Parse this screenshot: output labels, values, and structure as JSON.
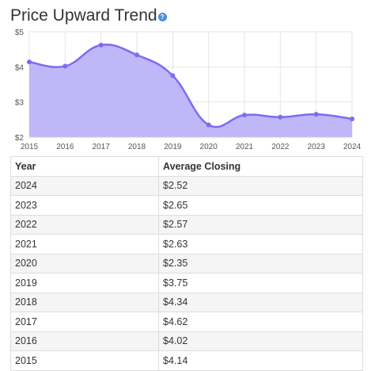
{
  "header": {
    "title": "Price Upward Trend",
    "help_icon": "question-circle-icon",
    "help_glyph": "?"
  },
  "colors": {
    "line": "#7b6cf0",
    "fill": "#bcb3f7",
    "grid": "#e6e6e6",
    "help_icon": "#4a90d9"
  },
  "chart_data": {
    "type": "area",
    "x": [
      2015,
      2016,
      2017,
      2018,
      2019,
      2020,
      2021,
      2022,
      2023,
      2024
    ],
    "tick_labels": [
      "2015",
      "2016",
      "2017",
      "2018",
      "2019",
      "2020",
      "2021",
      "2022",
      "2023",
      "2024"
    ],
    "y_ticks": [
      2,
      3,
      4,
      5
    ],
    "y_tick_labels": [
      "$2",
      "$3",
      "$4",
      "$5"
    ],
    "values": [
      4.14,
      4.02,
      4.62,
      4.34,
      3.75,
      2.35,
      2.63,
      2.57,
      2.65,
      2.52
    ],
    "ylim": [
      2,
      5
    ],
    "xlim": [
      2015,
      2024
    ],
    "grid": true,
    "smooth": true,
    "title": "",
    "xlabel": "",
    "ylabel": ""
  },
  "table": {
    "headers": [
      "Year",
      "Average Closing"
    ],
    "rows": [
      [
        "2024",
        "$2.52"
      ],
      [
        "2023",
        "$2.65"
      ],
      [
        "2022",
        "$2.57"
      ],
      [
        "2021",
        "$2.63"
      ],
      [
        "2020",
        "$2.35"
      ],
      [
        "2019",
        "$3.75"
      ],
      [
        "2018",
        "$4.34"
      ],
      [
        "2017",
        "$4.62"
      ],
      [
        "2016",
        "$4.02"
      ],
      [
        "2015",
        "$4.14"
      ]
    ]
  }
}
